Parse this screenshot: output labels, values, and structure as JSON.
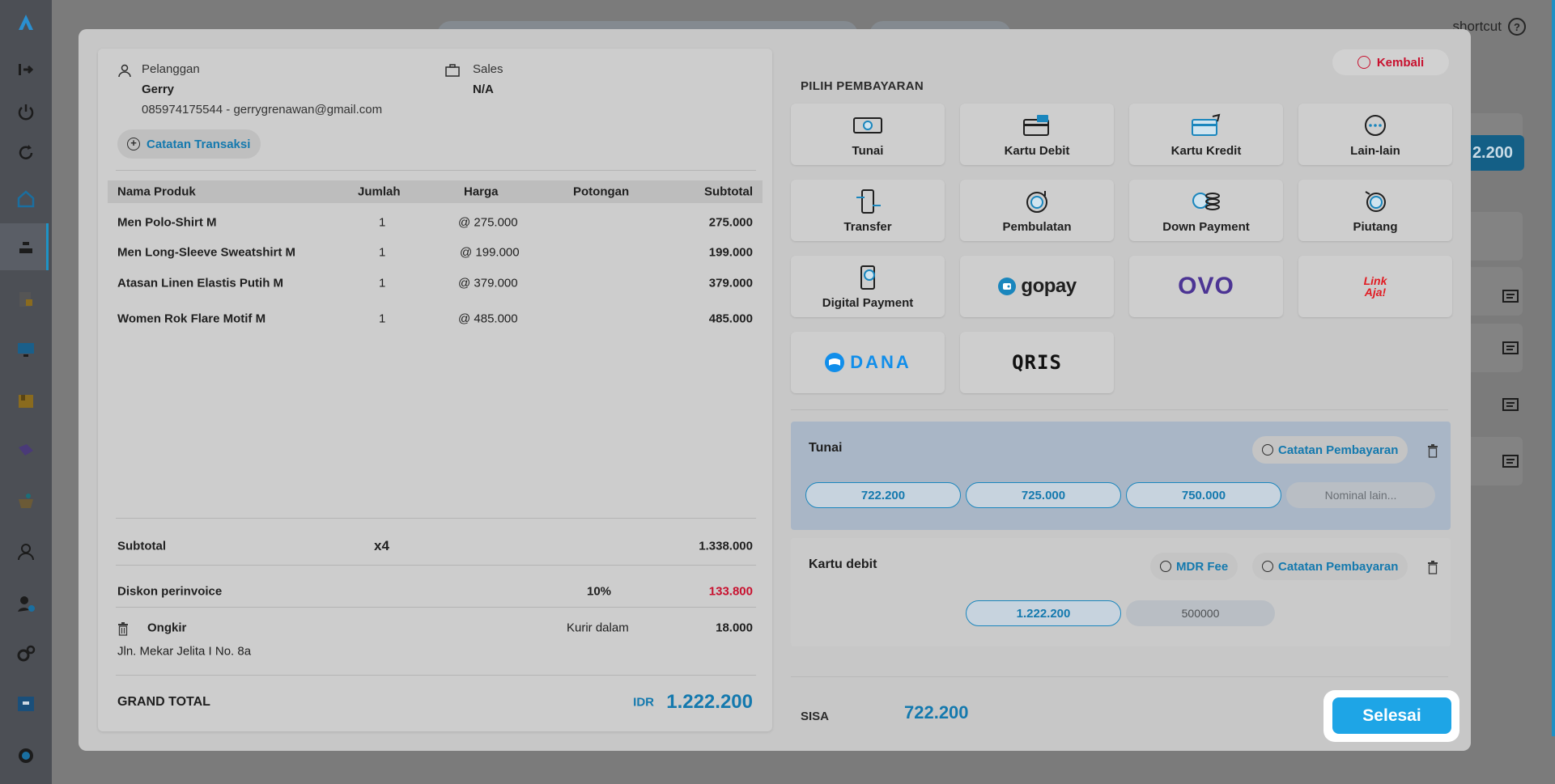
{
  "topbar": {
    "shortcut_label": "shortcut",
    "help_icon": "?"
  },
  "background": {
    "total_fragment": "2.200"
  },
  "customer": {
    "label": "Pelanggan",
    "name": "Gerry",
    "contact": "085974175544 - gerrygrenawan@gmail.com",
    "notes_button": "Catatan Transaksi"
  },
  "sales": {
    "label": "Sales",
    "value": "N/A"
  },
  "table": {
    "headers": {
      "product": "Nama Produk",
      "qty": "Jumlah",
      "price": "Harga",
      "discount": "Potongan",
      "subtotal": "Subtotal"
    },
    "rows": [
      {
        "name": "Men Polo-Shirt M",
        "qty": "1",
        "price": "@ 275.000",
        "discount": "",
        "subtotal": "275.000"
      },
      {
        "name": "Men Long-Sleeve Sweatshirt M",
        "qty": "1",
        "price": "@ 199.000",
        "discount": "",
        "subtotal": "199.000"
      },
      {
        "name": "Atasan Linen Elastis Putih M",
        "qty": "1",
        "price": "@ 379.000",
        "discount": "",
        "subtotal": "379.000"
      },
      {
        "name": "Women Rok Flare Motif M",
        "qty": "1",
        "price": "@ 485.000",
        "discount": "",
        "subtotal": "485.000"
      }
    ]
  },
  "summary": {
    "subtotal_label": "Subtotal",
    "item_count": "x4",
    "subtotal_value": "1.338.000",
    "discount_label": "Diskon perinvoice",
    "discount_percent": "10%",
    "discount_value": "133.800",
    "shipping_label": "Ongkir",
    "shipping_courier": "Kurir dalam",
    "shipping_value": "18.000",
    "address": "Jln. Mekar Jelita I No. 8a",
    "grand_total_label": "GRAND TOTAL",
    "grand_total_currency": "IDR",
    "grand_total_value": "1.222.200"
  },
  "payment": {
    "back_button": "Kembali",
    "section_title": "PILIH PEMBAYARAN",
    "methods": [
      {
        "label": "Tunai",
        "icon": "cash-icon"
      },
      {
        "label": "Kartu Debit",
        "icon": "debit-card-icon"
      },
      {
        "label": "Kartu Kredit",
        "icon": "credit-card-icon"
      },
      {
        "label": "Lain-lain",
        "icon": "more-icon"
      },
      {
        "label": "Transfer",
        "icon": "transfer-icon"
      },
      {
        "label": "Pembulatan",
        "icon": "rounding-icon"
      },
      {
        "label": "Down Payment",
        "icon": "coins-icon"
      },
      {
        "label": "Piutang",
        "icon": "receivable-icon"
      },
      {
        "label": "Digital Payment",
        "icon": "digital-payment-icon"
      }
    ],
    "brands": {
      "gopay": "gopay",
      "ovo": "OVO",
      "linkaja_line1": "Link",
      "linkaja_line2": "Aja!",
      "dana": "DANA",
      "qris": "QRIS"
    },
    "colors": {
      "accent": "#1479ae",
      "button": "#1ea5e6",
      "danger": "#c8102e",
      "ovo": "#4c3494",
      "linkaja": "#e11b22",
      "dana": "#118eea"
    }
  },
  "tunai": {
    "title": "Tunai",
    "notes_button": "Catatan Pembayaran",
    "amounts": [
      "722.200",
      "725.000",
      "750.000"
    ],
    "other_placeholder": "Nominal lain..."
  },
  "debit": {
    "title": "Kartu debit",
    "mdr_button": "MDR Fee",
    "notes_button": "Catatan Pembayaran",
    "amount": "1.222.200",
    "input_value": "500000"
  },
  "footer": {
    "sisa_label": "SISA",
    "sisa_value": "722.200",
    "finish_button": "Selesai"
  }
}
